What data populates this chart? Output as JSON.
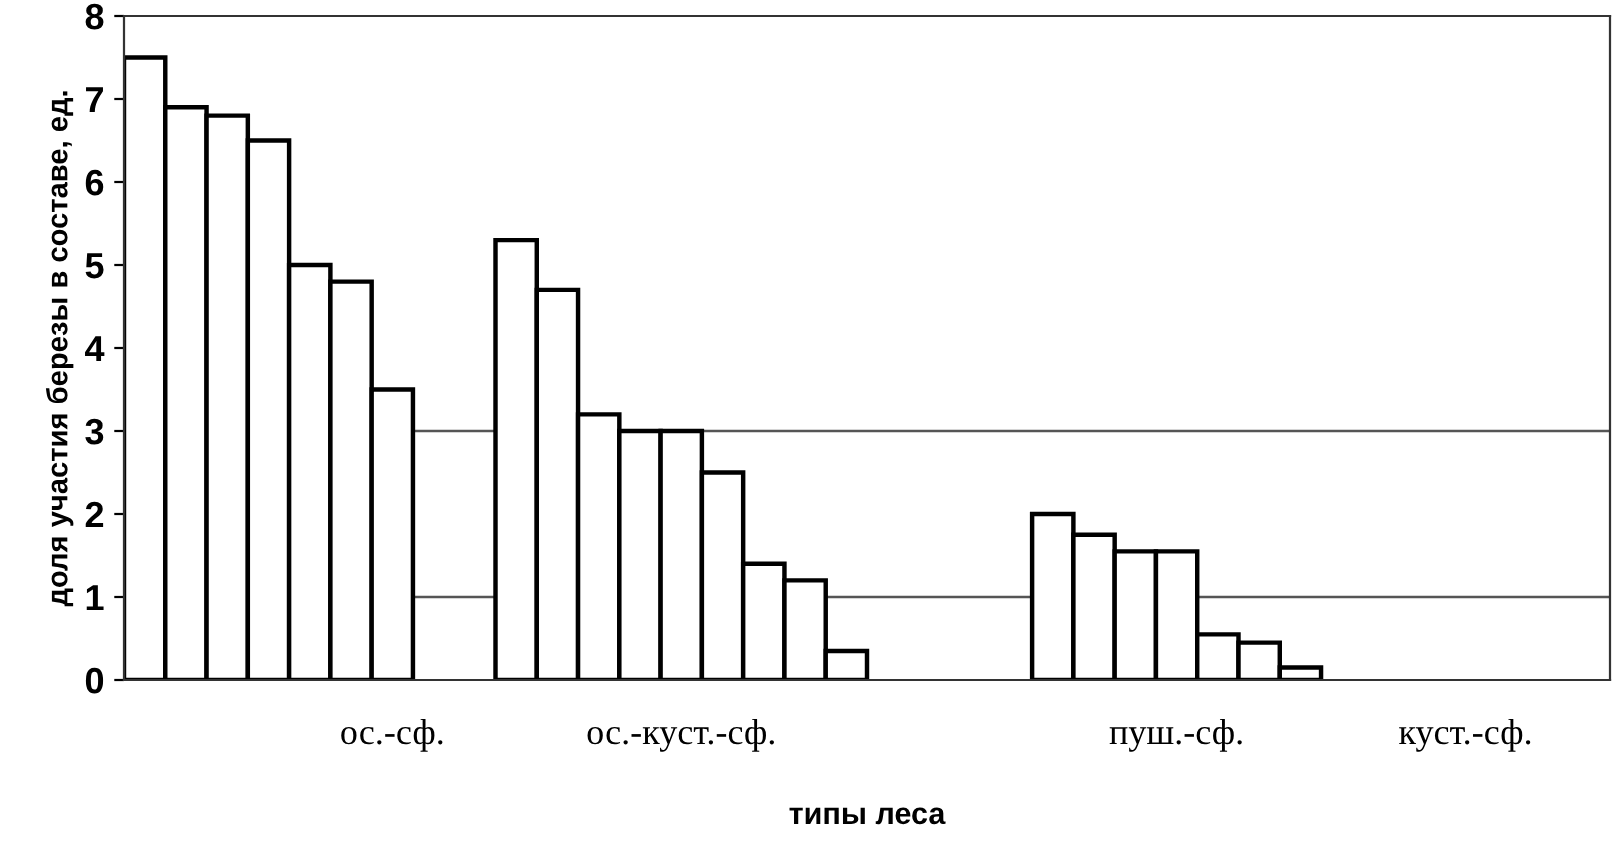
{
  "chart_data": {
    "type": "bar",
    "xlabel": "типы леса",
    "ylabel": "доля участия березы в составе, ед.",
    "categories": [
      null,
      null,
      null,
      null,
      null,
      null,
      "ос.-сф.",
      null,
      null,
      null,
      null,
      null,
      null,
      "ос.-куст.-сф.",
      null,
      null,
      null,
      null,
      null,
      null,
      null,
      null,
      null,
      null,
      null,
      "пуш.-сф.",
      null,
      null,
      null,
      null,
      null,
      null,
      "куст.-сф.",
      null,
      null,
      null
    ],
    "values": [
      7.5,
      6.9,
      6.8,
      6.5,
      5.0,
      4.8,
      3.5,
      null,
      null,
      5.3,
      4.7,
      3.2,
      3.0,
      3.0,
      2.5,
      1.4,
      1.2,
      0.35,
      null,
      null,
      null,
      null,
      2.0,
      1.75,
      1.55,
      1.55,
      0.55,
      0.45,
      0.15,
      null,
      null,
      null,
      null,
      null,
      null,
      null
    ],
    "color": "#ffffff",
    "ylim": [
      0,
      8
    ],
    "yticks": [
      0,
      1,
      2,
      3,
      4,
      5,
      6,
      7,
      8
    ],
    "ref_lines": [
      {
        "axis": "y",
        "value": 1,
        "color": "#555555"
      },
      {
        "axis": "y",
        "value": 3,
        "color": "#555555"
      }
    ],
    "grid": false,
    "legend": false
  }
}
